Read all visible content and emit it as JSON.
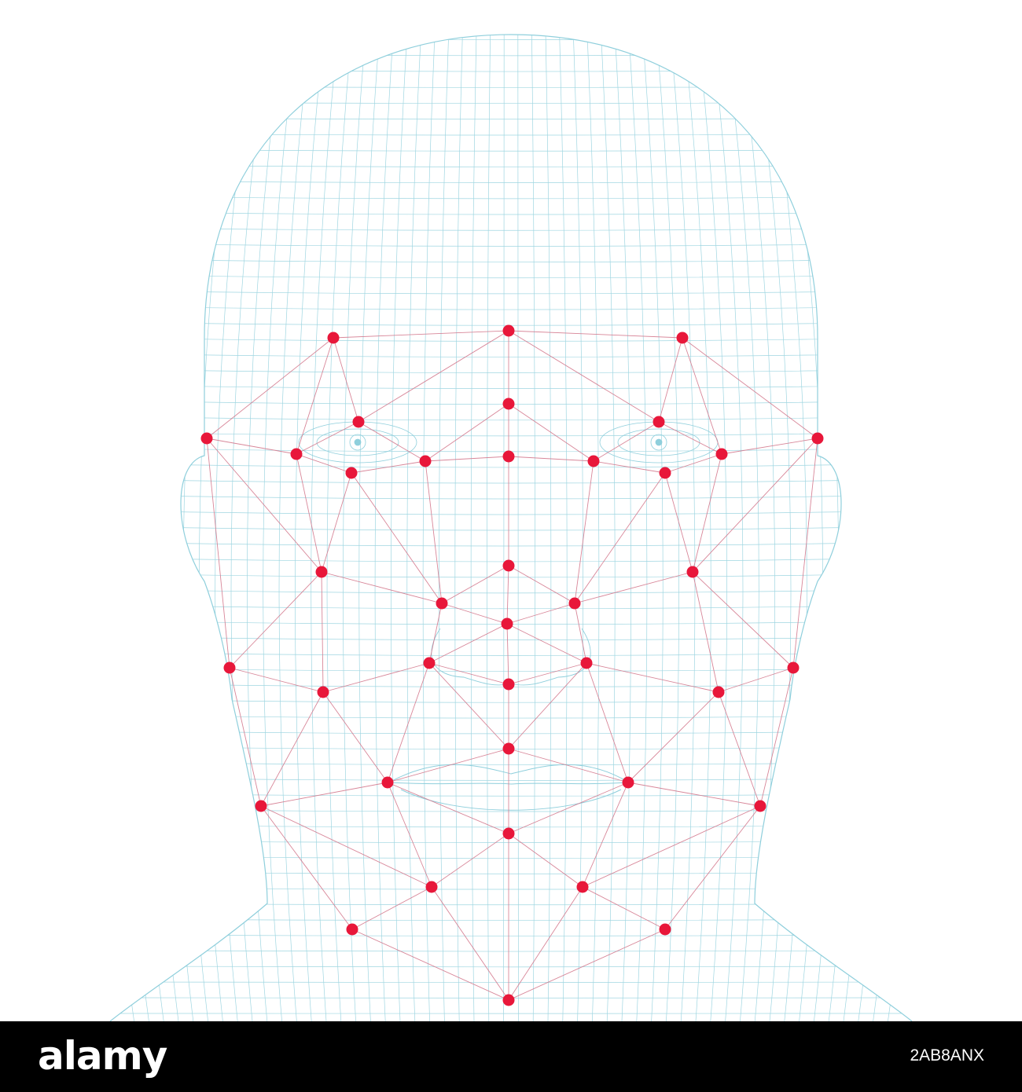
{
  "footer": {
    "brand": "alamy",
    "image_id": "2AB8ANX"
  },
  "colors": {
    "background": "#ffffff",
    "mesh_wire": "#8fcfdc",
    "landmark_point": "#e8173a",
    "landmark_link": "#d47a8e",
    "footer_bar": "#000000",
    "footer_text": "#ffffff"
  }
}
